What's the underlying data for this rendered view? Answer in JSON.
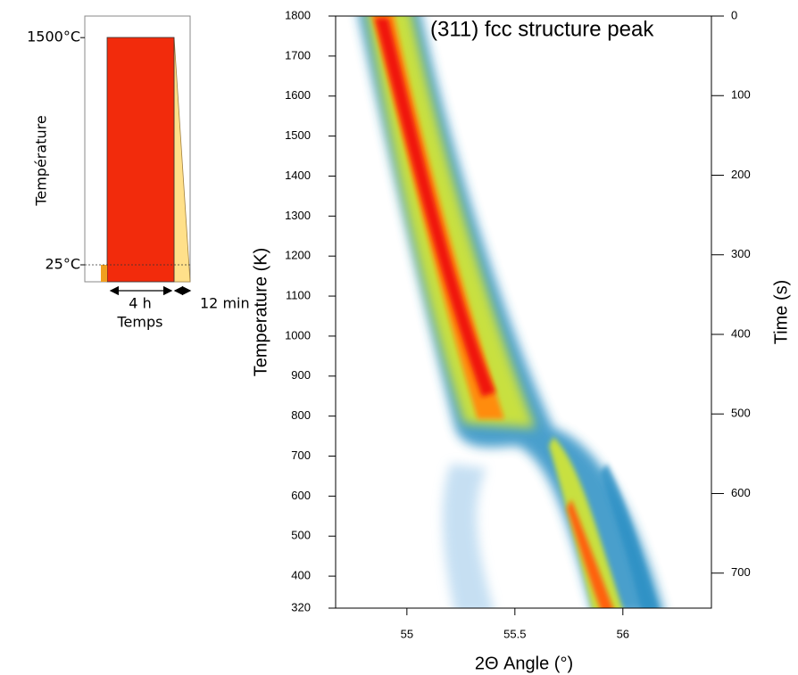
{
  "chart_data": [
    {
      "type": "schematic",
      "ylabel": "Température",
      "xlabel": "Temps",
      "ylim": [
        -85,
        1640
      ],
      "yticks": [
        {
          "value": 1500,
          "label": "1500°C"
        },
        {
          "value": 25,
          "label": "25°C"
        }
      ],
      "annotations": [
        "4 h",
        "12 min"
      ]
    },
    {
      "type": "heatmap",
      "xlabel": "2Θ Angle (°)",
      "ylabel": "Temperature (K)",
      "y2label": "Time (s)",
      "annotation": "(311) fcc structure peak",
      "xlim": [
        54.67,
        56.41
      ],
      "xticks": [
        55,
        55.5,
        56
      ],
      "ylim": [
        320,
        1800
      ],
      "yticks": [
        320,
        400,
        500,
        600,
        700,
        800,
        900,
        1000,
        1100,
        1200,
        1300,
        1400,
        1500,
        1600,
        1700,
        1800
      ],
      "y2lim": [
        744,
        0
      ],
      "y2ticks": [
        0,
        100,
        200,
        300,
        400,
        500,
        600,
        700
      ]
    }
  ]
}
